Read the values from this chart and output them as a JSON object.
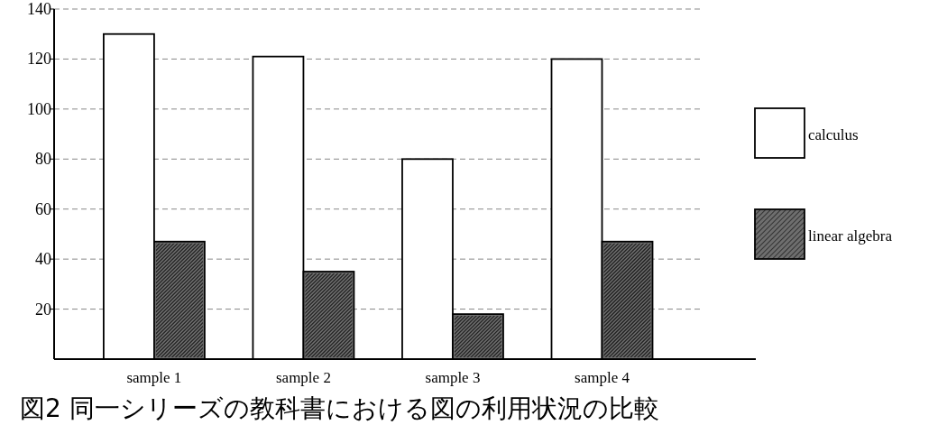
{
  "chart_data": {
    "type": "bar",
    "title": "図2 同一シリーズの教科書における図の利用状況の比較",
    "categories": [
      "sample 1",
      "sample 2",
      "sample 3",
      "sample 4"
    ],
    "series": [
      {
        "name": "calculus",
        "color": "#ffffff",
        "values": [
          130,
          121,
          80,
          120
        ]
      },
      {
        "name": "linear algebra",
        "color": "#6e6e6e",
        "values": [
          47,
          35,
          18,
          47
        ]
      }
    ],
    "ylim": [
      0,
      140
    ],
    "yticks": [
      20,
      40,
      60,
      80,
      100,
      120,
      140
    ],
    "grid": "y",
    "legend": "right"
  }
}
